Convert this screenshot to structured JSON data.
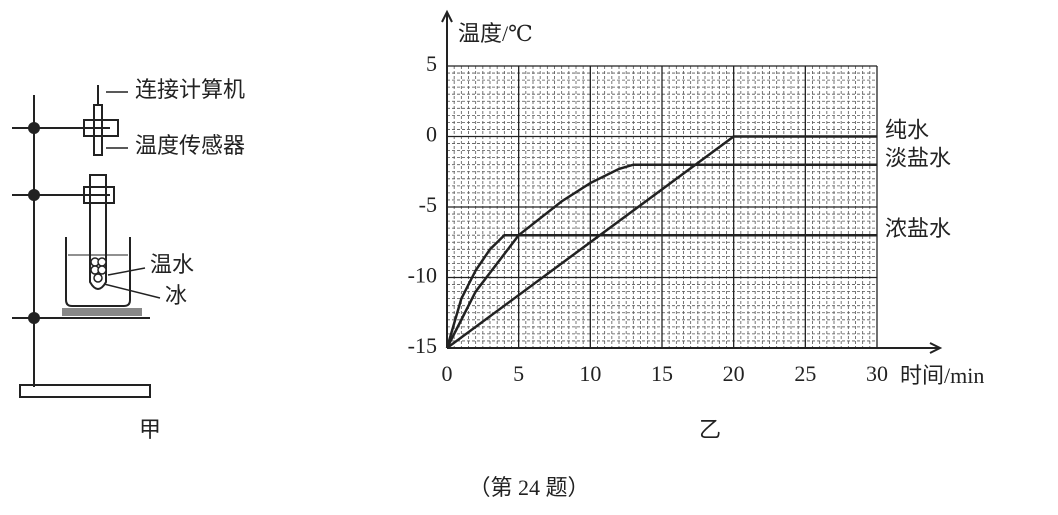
{
  "apparatus": {
    "label_computer": "连接计算机",
    "label_sensor": "温度传感器",
    "label_warm_water": "温水",
    "label_ice": "冰",
    "caption": "甲"
  },
  "chart_data": {
    "type": "line",
    "caption": "乙",
    "xlabel": "时间/min",
    "ylabel": "温度/℃",
    "xlim": [
      0,
      30
    ],
    "xticks": [
      0,
      5,
      10,
      15,
      20,
      25,
      30
    ],
    "ylim": [
      -15,
      5
    ],
    "yticks": [
      5,
      0,
      -5,
      -10,
      -15
    ],
    "grid": true,
    "color": "#222222",
    "series": [
      {
        "name": "纯水",
        "x": [
          0,
          20,
          30
        ],
        "values": [
          -15,
          0,
          0
        ]
      },
      {
        "name": "淡盐水",
        "x": [
          0,
          2,
          5,
          8,
          10,
          12,
          13,
          30
        ],
        "values": [
          -15,
          -11,
          -7,
          -4.6,
          -3.3,
          -2.3,
          -2,
          -2
        ]
      },
      {
        "name": "浓盐水",
        "x": [
          0,
          1,
          2,
          3,
          4,
          30
        ],
        "values": [
          -15,
          -11.5,
          -9.5,
          -8,
          -7,
          -7
        ]
      }
    ]
  },
  "footer": "（第 24 题）"
}
